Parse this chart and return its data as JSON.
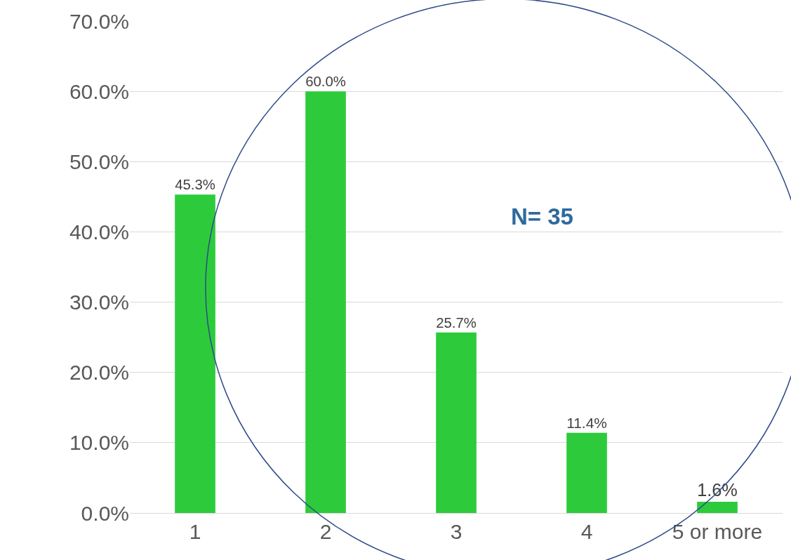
{
  "chart_data": {
    "type": "bar",
    "categories": [
      "1",
      "2",
      "3",
      "4",
      "5 or more"
    ],
    "values": [
      45.3,
      60.0,
      25.7,
      11.4,
      1.6
    ],
    "color": "#2dcb3b",
    "value_labels": [
      "45.3%",
      "60.0%",
      "25.7%",
      "11.4%",
      "1.6%"
    ],
    "ylim": [
      0,
      70
    ],
    "yticks": [
      {
        "value": 0,
        "label": "0.0%"
      },
      {
        "value": 10,
        "label": "10.0%"
      },
      {
        "value": 20,
        "label": "20.0%"
      },
      {
        "value": 30,
        "label": "30.0%"
      },
      {
        "value": 40,
        "label": "40.0%"
      },
      {
        "value": 50,
        "label": "50.0%"
      },
      {
        "value": 60,
        "label": "60.0%"
      },
      {
        "value": 70,
        "label": "70.0%"
      }
    ],
    "grid": "y",
    "legend": false,
    "annotations": [
      "N= 35"
    ]
  }
}
